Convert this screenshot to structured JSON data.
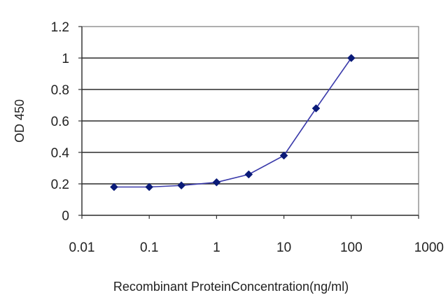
{
  "chart_data": {
    "type": "scatter",
    "title": "",
    "xlabel": "Recombinant ProteinConcentration(ng/ml)",
    "ylabel": "OD 450",
    "x_scale": "log",
    "xlim": [
      0.01,
      1000
    ],
    "ylim": [
      0,
      1.2
    ],
    "x_ticks": [
      "0.01",
      "0.1",
      "1",
      "10",
      "100",
      "1000"
    ],
    "x_tick_values": [
      0.01,
      0.1,
      1,
      10,
      100,
      1000
    ],
    "y_ticks": [
      "0",
      "0.2",
      "0.4",
      "0.6",
      "0.8",
      "1",
      "1.2"
    ],
    "y_tick_values": [
      0,
      0.2,
      0.4,
      0.6,
      0.8,
      1,
      1.2
    ],
    "grid": "horizontal",
    "legend": "none",
    "series": [
      {
        "x": [
          0.03,
          0.1,
          0.3,
          1,
          3,
          10,
          30,
          100
        ],
        "y": [
          0.18,
          0.18,
          0.19,
          0.21,
          0.26,
          0.38,
          0.68,
          1.0
        ],
        "color": "#3a3aaa",
        "marker": "diamond",
        "marker_color": "#0a1a78"
      }
    ]
  }
}
